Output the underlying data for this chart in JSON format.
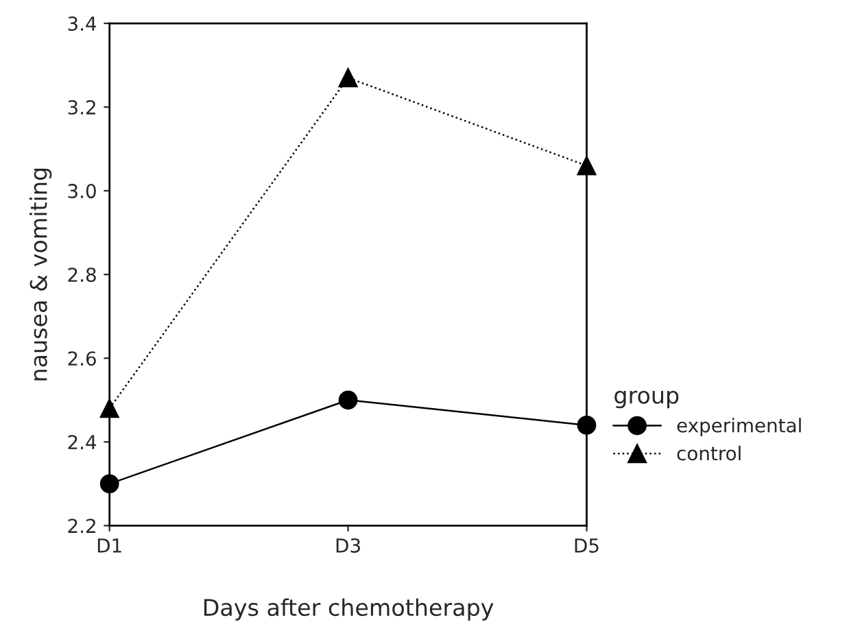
{
  "chart_data": {
    "type": "line",
    "xlabel": "Days after chemotherapy",
    "ylabel": "nausea & vomiting",
    "legend_title": "group",
    "legend": "right",
    "grid": false,
    "categories": [
      "D1",
      "D3",
      "D5"
    ],
    "ylim": [
      2.2,
      3.4
    ],
    "yticks": [
      2.2,
      2.4,
      2.6,
      2.8,
      {
        "value": 3,
        "label": "3.0"
      },
      3.2,
      3.4
    ],
    "series": [
      {
        "name": "experimental",
        "color": "#000000",
        "values": [
          2.3,
          2.5,
          2.44
        ],
        "marker": "circle",
        "line_style": "solid"
      },
      {
        "name": "control",
        "color": "#000000",
        "values": [
          2.48,
          3.27,
          3.06
        ],
        "marker": "triangle",
        "line_style": "dotted"
      }
    ]
  }
}
